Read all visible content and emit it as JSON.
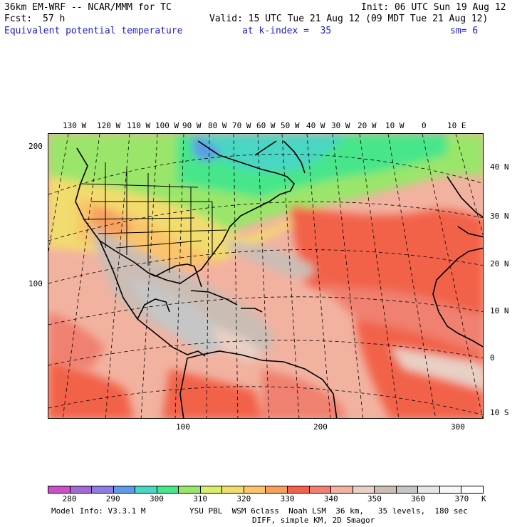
{
  "header": {
    "model": "36km EM-WRF -- NCAR/MMM for TC",
    "init": "Init: 06 UTC Sun 19 Aug 12",
    "fcst_label": "Fcst:",
    "fcst_value": "57 h",
    "valid": "Valid: 15 UTC Tue 21 Aug 12 (09 MDT Tue 21 Aug 12)",
    "field": "Equivalent potential temperature",
    "level": "at k-index =  35",
    "smooth": "sm= 6"
  },
  "map": {
    "lon_labels": [
      "130 W",
      "120 W",
      "110 W",
      "100 W",
      "90 W",
      "80 W",
      "70 W",
      "60 W",
      "50 W",
      "40 W",
      "30 W",
      "20 W",
      "10 W",
      "0",
      "10 E"
    ],
    "lat_labels": [
      "40 N",
      "30 N",
      "20 N",
      "10 N",
      "0",
      "10 S"
    ],
    "grid_y_labels": [
      "200",
      "100"
    ],
    "grid_x_labels": [
      "100",
      "200",
      "300"
    ]
  },
  "legend": {
    "values": [
      "280",
      "290",
      "300",
      "310",
      "320",
      "330",
      "340",
      "350",
      "360",
      "370"
    ],
    "unit": "K",
    "colors": [
      "#c850c8",
      "#a46ad2",
      "#8a7ee0",
      "#5e9ae6",
      "#4ad6c2",
      "#46e68a",
      "#9ae66a",
      "#d6ee6a",
      "#f2dc6e",
      "#fac46a",
      "#f6a060",
      "#f2624a",
      "#f08070",
      "#f2b2a0",
      "#e8d0c4",
      "#cbbdb4",
      "#c6c6c6",
      "#e6e6e6",
      "#f6f6f6",
      "#ffffff"
    ]
  },
  "footer": {
    "model_info": "Model Info: V3.3.1 M",
    "physics": "YSU PBL  WSM 6class  Noah LSM  36 km,   35 levels,  180 sec",
    "diff": "DIFF, simple KM, 2D Smagor"
  }
}
